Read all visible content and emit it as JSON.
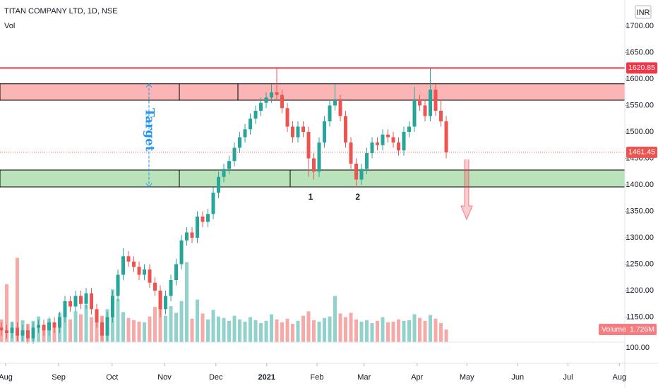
{
  "chart_data": {
    "type": "candlestick",
    "title": "TITAN COMPANY LTD, 1D, NSE",
    "indicator_label": "Vol",
    "currency": "INR",
    "xlim": [
      -0.27,
      117.73
    ],
    "xticks": [
      {
        "value": 0.8,
        "label": "Aug"
      },
      {
        "value": 10.8,
        "label": "Sep"
      },
      {
        "value": 20.9,
        "label": "Oct"
      },
      {
        "value": 30.8,
        "label": "Nov"
      },
      {
        "value": 40.5,
        "label": "Dec"
      },
      {
        "value": 50.1,
        "label": "2021"
      },
      {
        "value": 59.6,
        "label": "Feb"
      },
      {
        "value": 68.5,
        "label": "Mar"
      },
      {
        "value": 78.5,
        "label": "Apr"
      },
      {
        "value": 87.9,
        "label": "May"
      },
      {
        "value": 97.5,
        "label": "Jun"
      },
      {
        "value": 107,
        "label": "Jul"
      },
      {
        "value": 116.7,
        "label": "Aug"
      }
    ],
    "ylim": [
      1062.67,
      1749.33
    ],
    "yticks": [
      {
        "value": 1150,
        "label": "1150.00"
      },
      {
        "value": 1200,
        "label": "1200.00"
      },
      {
        "value": 1250,
        "label": "1250.00"
      },
      {
        "value": 1300,
        "label": "1300.00"
      },
      {
        "value": 1350,
        "label": "1350.00"
      },
      {
        "value": 1400,
        "label": "1400.00"
      },
      {
        "value": 1450,
        "label": "1450.00"
      },
      {
        "value": 1500,
        "label": "1500.00"
      },
      {
        "value": 1550,
        "label": "1550.00"
      },
      {
        "value": 1600,
        "label": "1600.00"
      },
      {
        "value": 1650,
        "label": "1650.00"
      },
      {
        "value": 1700,
        "label": "1700.00"
      }
    ],
    "grid": false,
    "up_color": "#26a69a",
    "down_color": "#ef5350",
    "open": [
      1130,
      1125,
      1120,
      1130,
      1115,
      1125,
      1110,
      1130,
      1135,
      1125,
      1140,
      1130,
      1150,
      1180,
      1170,
      1190,
      1175,
      1195,
      1165,
      1140,
      1115,
      1150,
      1190,
      1230,
      1265,
      1255,
      1245,
      1230,
      1240,
      1215,
      1200,
      1165,
      1190,
      1220,
      1250,
      1295,
      1310,
      1300,
      1340,
      1330,
      1345,
      1385,
      1415,
      1430,
      1445,
      1470,
      1490,
      1505,
      1525,
      1540,
      1555,
      1565,
      1575,
      1570,
      1545,
      1510,
      1490,
      1510,
      1500,
      1450,
      1425,
      1480,
      1520,
      1550,
      1560,
      1530,
      1480,
      1440,
      1410,
      1430,
      1460,
      1480,
      1475,
      1495,
      1490,
      1480,
      1465,
      1500,
      1510,
      1560,
      1550,
      1530,
      1580,
      1540,
      1520
    ],
    "high": [
      1140,
      1135,
      1140,
      1140,
      1135,
      1135,
      1140,
      1145,
      1145,
      1150,
      1150,
      1160,
      1190,
      1190,
      1200,
      1200,
      1205,
      1205,
      1175,
      1150,
      1160,
      1200,
      1240,
      1280,
      1275,
      1265,
      1255,
      1250,
      1250,
      1225,
      1210,
      1200,
      1230,
      1260,
      1305,
      1320,
      1320,
      1350,
      1350,
      1355,
      1395,
      1425,
      1440,
      1455,
      1480,
      1500,
      1515,
      1535,
      1550,
      1565,
      1575,
      1590,
      1621,
      1580,
      1555,
      1520,
      1520,
      1520,
      1510,
      1460,
      1490,
      1530,
      1560,
      1590,
      1570,
      1540,
      1490,
      1450,
      1440,
      1470,
      1490,
      1490,
      1505,
      1505,
      1500,
      1490,
      1510,
      1520,
      1585,
      1570,
      1560,
      1621,
      1590,
      1560,
      1530
    ],
    "low": [
      1115,
      1110,
      1110,
      1105,
      1105,
      1100,
      1100,
      1120,
      1115,
      1115,
      1120,
      1120,
      1140,
      1160,
      1160,
      1165,
      1165,
      1155,
      1130,
      1105,
      1105,
      1140,
      1180,
      1220,
      1245,
      1235,
      1220,
      1220,
      1205,
      1190,
      1150,
      1155,
      1180,
      1210,
      1240,
      1285,
      1290,
      1290,
      1320,
      1320,
      1335,
      1375,
      1405,
      1420,
      1435,
      1460,
      1480,
      1495,
      1515,
      1530,
      1545,
      1555,
      1560,
      1535,
      1500,
      1480,
      1480,
      1490,
      1415,
      1410,
      1415,
      1470,
      1510,
      1540,
      1520,
      1470,
      1430,
      1395,
      1400,
      1420,
      1450,
      1465,
      1465,
      1480,
      1470,
      1455,
      1455,
      1490,
      1500,
      1540,
      1520,
      1520,
      1530,
      1510,
      1450
    ],
    "close": [
      1125,
      1120,
      1130,
      1115,
      1125,
      1110,
      1130,
      1135,
      1125,
      1140,
      1130,
      1150,
      1180,
      1170,
      1190,
      1175,
      1195,
      1165,
      1140,
      1115,
      1150,
      1190,
      1230,
      1265,
      1255,
      1245,
      1230,
      1240,
      1215,
      1200,
      1165,
      1190,
      1220,
      1250,
      1295,
      1310,
      1300,
      1340,
      1330,
      1345,
      1385,
      1415,
      1430,
      1445,
      1470,
      1490,
      1505,
      1525,
      1540,
      1555,
      1565,
      1575,
      1570,
      1545,
      1510,
      1490,
      1510,
      1500,
      1450,
      1425,
      1480,
      1520,
      1550,
      1560,
      1530,
      1480,
      1440,
      1410,
      1430,
      1460,
      1480,
      1475,
      1495,
      1490,
      1480,
      1465,
      1500,
      1510,
      1560,
      1550,
      1530,
      1580,
      1540,
      1520,
      1461.45
    ],
    "volume": {
      "name": "Volume",
      "vlim": [
        0,
        12.6
      ],
      "axis_label": "100.00",
      "last_label": "1.726M",
      "values": [
        3.1,
        7.9,
        2.8,
        11.5,
        3.0,
        2.5,
        2.9,
        3.5,
        2.4,
        3.2,
        2.6,
        4.0,
        5.5,
        3.1,
        4.2,
        3.8,
        5.1,
        3.4,
        2.9,
        3.6,
        4.5,
        7.2,
        5.9,
        4.1,
        3.3,
        3.0,
        2.8,
        2.7,
        3.5,
        4.8,
        5.3,
        3.6,
        4.9,
        4.0,
        5.6,
        10.9,
        3.2,
        5.8,
        3.9,
        3.1,
        4.4,
        3.5,
        3.3,
        2.9,
        3.6,
        3.1,
        2.8,
        3.4,
        3.0,
        2.6,
        2.9,
        3.8,
        3.1,
        2.7,
        3.2,
        2.5,
        2.9,
        3.6,
        4.2,
        3.0,
        2.8,
        3.3,
        3.5,
        6.3,
        3.9,
        3.4,
        4.0,
        3.1,
        2.8,
        3.0,
        2.6,
        2.9,
        3.4,
        2.7,
        2.8,
        3.1,
        2.9,
        3.0,
        3.8,
        3.3,
        2.9,
        3.7,
        3.2,
        2.6,
        1.726
      ]
    },
    "resistance_line": {
      "value": 1620.85,
      "color": "#f23645"
    },
    "resistance_zone": [
      1560,
      1591
    ],
    "support_zone": [
      1396,
      1428
    ],
    "target_label": "Target",
    "pattern_labels": [
      "1",
      "2"
    ]
  }
}
